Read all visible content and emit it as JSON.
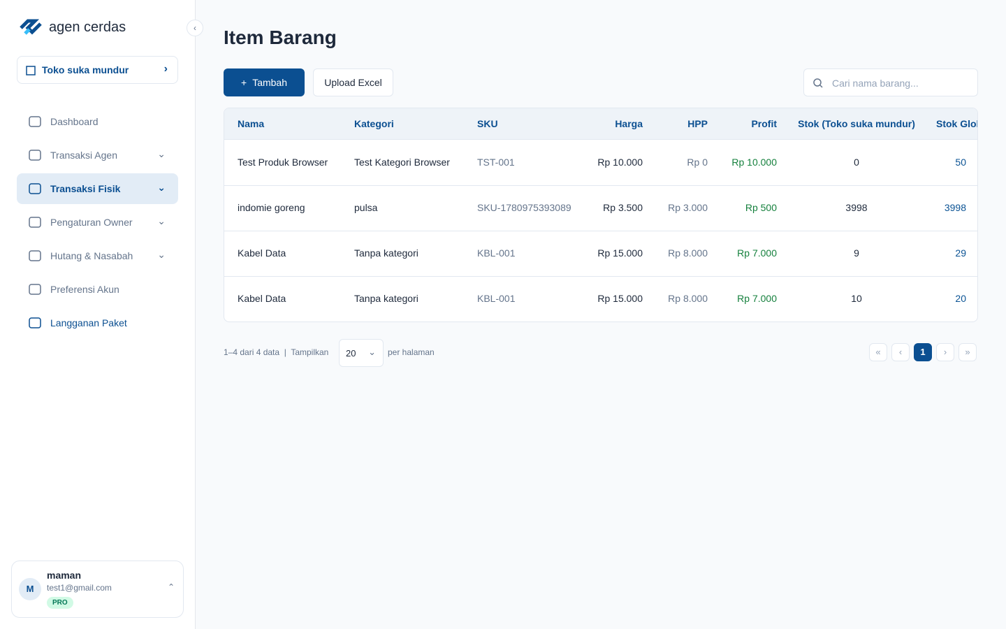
{
  "sidebar": {
    "brand": "agen cerdas",
    "store": "Toko suka mundur",
    "menu": [
      "Dashboard",
      "Transaksi Agen",
      "Transaksi Fisik",
      "Pengaturan Owner",
      "Hutang & Nasabah",
      "Preferensi Akun",
      "Langganan Paket"
    ],
    "user": {
      "initial": "M",
      "name": "maman",
      "email": "test1@gmail.com",
      "badge": "PRO"
    }
  },
  "header": {
    "title": "Item Barang"
  },
  "toolbar": {
    "add": "Tambah",
    "upload": "Upload Excel",
    "search_placeholder": "Cari nama barang..."
  },
  "table": {
    "columns": [
      "Nama",
      "Kategori",
      "SKU",
      "Harga",
      "HPP",
      "Profit",
      "Stok (Toko suka mundur)",
      "Stok Global"
    ],
    "rows": [
      [
        "Test Produk Browser",
        "Test Kategori Browser",
        "TST-001",
        "Rp 10.000",
        "Rp 0",
        "Rp 10.000",
        "0",
        "50"
      ],
      [
        "indomie goreng",
        "pulsa",
        "SKU-1780975393089",
        "Rp 3.500",
        "Rp 3.000",
        "Rp 500",
        "3998",
        "3998"
      ],
      [
        "Kabel Data",
        "Tanpa kategori",
        "KBL-001",
        "Rp 15.000",
        "Rp 8.000",
        "Rp 7.000",
        "9",
        "29"
      ],
      [
        "Kabel Data",
        "Tanpa kategori",
        "KBL-001",
        "Rp 15.000",
        "Rp 8.000",
        "Rp 7.000",
        "10",
        "20"
      ]
    ]
  },
  "pagination": {
    "summary": "1–4 dari 4 data",
    "show": "Tampilkan",
    "per_page": "20",
    "per_page_suffix": "per halaman",
    "current": "1"
  }
}
